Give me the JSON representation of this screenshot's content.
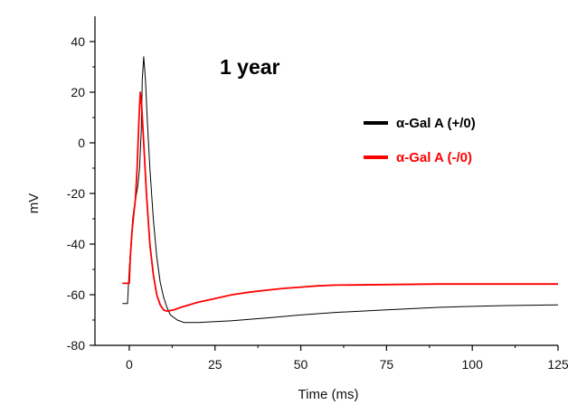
{
  "chart_data": {
    "type": "line",
    "title": "",
    "annotation": "1 year",
    "xlabel": "Time (ms)",
    "ylabel": "mV",
    "xlim": [
      -10,
      125
    ],
    "ylim": [
      -80,
      50
    ],
    "x_ticks": [
      0,
      25,
      50,
      75,
      100,
      125
    ],
    "y_ticks": [
      -80,
      -60,
      -40,
      -20,
      0,
      20,
      40
    ],
    "grid": false,
    "legend_position": "top-right",
    "series": [
      {
        "name": "α-Gal A (+/0)",
        "color": "#000000",
        "points": [
          [
            -2,
            -63.5
          ],
          [
            -0.5,
            -63.5
          ],
          [
            0,
            -50
          ],
          [
            0.6,
            -38
          ],
          [
            1,
            -30
          ],
          [
            1.5,
            -25
          ],
          [
            2,
            -21
          ],
          [
            2.5,
            -17
          ],
          [
            3,
            -10
          ],
          [
            3.5,
            5
          ],
          [
            3.8,
            25
          ],
          [
            4.2,
            34
          ],
          [
            4.7,
            25
          ],
          [
            5.3,
            8
          ],
          [
            6,
            -10
          ],
          [
            7,
            -30
          ],
          [
            8,
            -45
          ],
          [
            9,
            -55
          ],
          [
            10,
            -61
          ],
          [
            11,
            -65
          ],
          [
            12,
            -68
          ],
          [
            14,
            -70
          ],
          [
            16,
            -71
          ],
          [
            20,
            -71
          ],
          [
            30,
            -70.3
          ],
          [
            40,
            -69.2
          ],
          [
            50,
            -68
          ],
          [
            60,
            -67
          ],
          [
            75,
            -66
          ],
          [
            90,
            -65
          ],
          [
            100,
            -64.6
          ],
          [
            110,
            -64.3
          ],
          [
            125,
            -64
          ]
        ]
      },
      {
        "name": "α-Gal A (-/0)",
        "color": "#ff0000",
        "points": [
          [
            -2,
            -55.5
          ],
          [
            0,
            -55.5
          ],
          [
            0.3,
            -45
          ],
          [
            0.8,
            -35
          ],
          [
            1.3,
            -28
          ],
          [
            1.8,
            -22
          ],
          [
            2.3,
            -10
          ],
          [
            2.8,
            8
          ],
          [
            3.2,
            20
          ],
          [
            3.6,
            15
          ],
          [
            4.2,
            0
          ],
          [
            5,
            -20
          ],
          [
            6,
            -40
          ],
          [
            7,
            -52
          ],
          [
            8,
            -60
          ],
          [
            9,
            -64
          ],
          [
            10,
            -66
          ],
          [
            11,
            -66.5
          ],
          [
            13,
            -66
          ],
          [
            15,
            -65
          ],
          [
            20,
            -63
          ],
          [
            25,
            -61.5
          ],
          [
            30,
            -60
          ],
          [
            35,
            -59
          ],
          [
            40,
            -58.2
          ],
          [
            45,
            -57.5
          ],
          [
            50,
            -57
          ],
          [
            55,
            -56.5
          ],
          [
            60,
            -56.2
          ],
          [
            75,
            -56
          ],
          [
            90,
            -55.8
          ],
          [
            100,
            -55.8
          ],
          [
            125,
            -55.8
          ]
        ]
      }
    ]
  }
}
